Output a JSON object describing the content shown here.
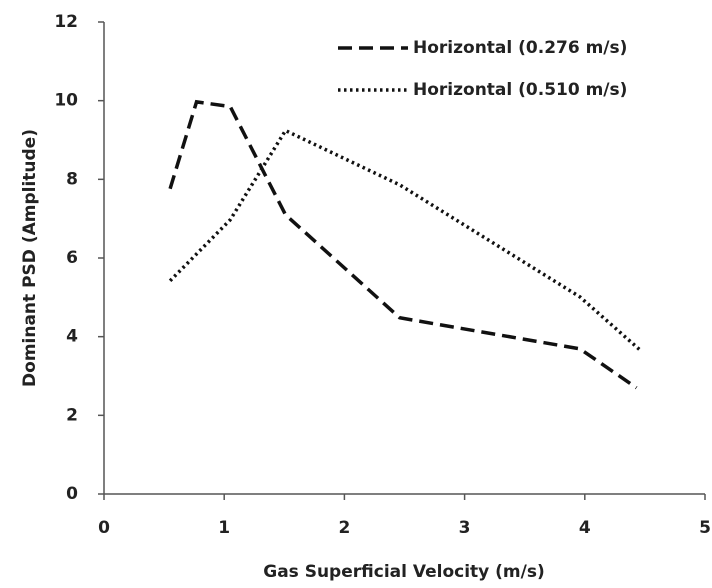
{
  "chart_data": {
    "type": "line",
    "x_label": "Gas Superficial Velocity (m/s)",
    "y_label": "Dominant PSD (Amplitude)",
    "xlim": [
      0,
      5
    ],
    "xticks": [
      0,
      1,
      2,
      3,
      4,
      5
    ],
    "ylim": [
      0,
      12
    ],
    "yticks": [
      0,
      2,
      4,
      6,
      8,
      10,
      12
    ],
    "grid": false,
    "legend": "top-right",
    "series": [
      {
        "name": "Horizontal (0.276 m/s)",
        "color": "#111111",
        "dash": "dashed",
        "x": [
          0.55,
          0.77,
          1.05,
          1.51,
          2.46,
          3.96,
          4.43
        ],
        "values": [
          7.76,
          9.97,
          9.85,
          7.1,
          4.48,
          3.69,
          2.7
        ]
      },
      {
        "name": "Horizontal (0.510 m/s)",
        "color": "#111111",
        "dash": "dotted",
        "x": [
          0.55,
          1.05,
          1.51,
          2.46,
          3.96,
          4.46
        ],
        "values": [
          5.42,
          6.97,
          9.24,
          7.86,
          5.01,
          3.66
        ]
      }
    ]
  }
}
